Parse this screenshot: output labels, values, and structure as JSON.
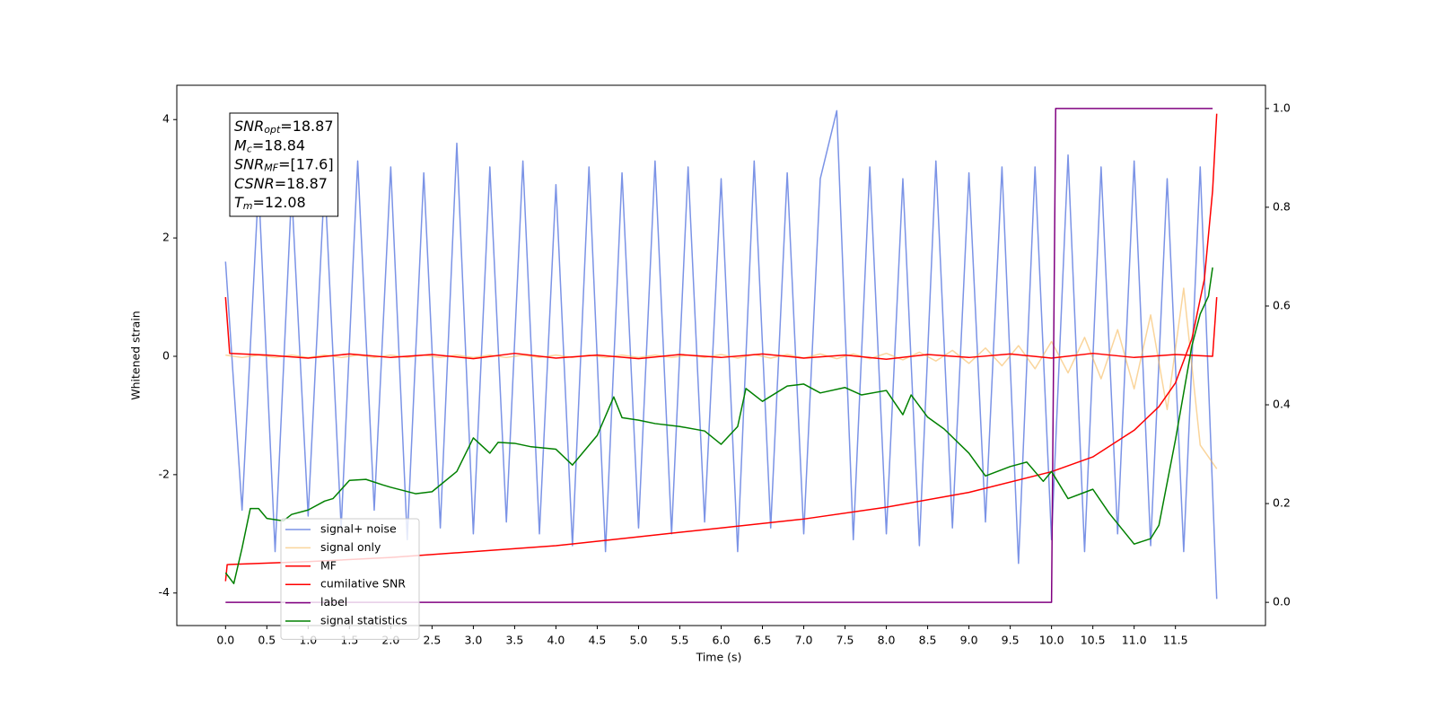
{
  "chart_data": {
    "type": "line",
    "xlabel": "Time (s)",
    "ylabel": "Whitened strain",
    "xlim": [
      -0.59,
      12.59
    ],
    "ylim": [
      -4.55,
      4.58
    ],
    "y2lim": [
      -0.047,
      1.047
    ],
    "xticks": [
      {
        "value": 0,
        "label": "0.0"
      },
      0.5,
      {
        "value": 1,
        "label": "1.0"
      },
      1.5,
      {
        "value": 2,
        "label": "2.0"
      },
      2.5,
      {
        "value": 3,
        "label": "3.0"
      },
      3.5,
      {
        "value": 4,
        "label": "4.0"
      },
      4.5,
      {
        "value": 5,
        "label": "5.0"
      },
      5.5,
      {
        "value": 6,
        "label": "6.0"
      },
      6.5,
      {
        "value": 7,
        "label": "7.0"
      },
      7.5,
      {
        "value": 8,
        "label": "8.0"
      },
      8.5,
      {
        "value": 9,
        "label": "9.0"
      },
      9.5,
      {
        "value": 10,
        "label": "10.0"
      },
      10.5,
      {
        "value": 11,
        "label": "11.0"
      },
      11.5
    ],
    "yticks": [
      -4,
      -2,
      0,
      2,
      4
    ],
    "y2ticks": [
      {
        "value": 0,
        "label": "0.0"
      },
      0.2,
      0.4,
      0.6,
      0.8,
      {
        "value": 1,
        "label": "1.0"
      }
    ],
    "legend_loc": "lower left",
    "annotation": [
      {
        "symbol": "SNR",
        "subscript": "opt",
        "text": "=18.87"
      },
      {
        "symbol": "M",
        "subscript": "c",
        "text": "=18.84"
      },
      {
        "symbol": "SNR",
        "subscript": "MF",
        "text": "=[17.6]"
      },
      {
        "symbol": "CSNR",
        "text": "=18.87"
      },
      {
        "symbol": "T",
        "subscript": "m",
        "text": "=12.08"
      }
    ],
    "series": [
      {
        "name": "signal+ noise",
        "color": "#7b93e6",
        "x": [
          0,
          0.2,
          0.4,
          0.6,
          0.8,
          1,
          1.2,
          1.4,
          1.6,
          1.8,
          2,
          2.2,
          2.4,
          2.6,
          2.8,
          3,
          3.2,
          3.4,
          3.6,
          3.8,
          4,
          4.2,
          4.4,
          4.6,
          4.8,
          5,
          5.2,
          5.4,
          5.6,
          5.8,
          6,
          6.2,
          6.4,
          6.6,
          6.8,
          7,
          7.2,
          7.4,
          7.6,
          7.8,
          8,
          8.2,
          8.4,
          8.6,
          8.8,
          9,
          9.2,
          9.4,
          9.6,
          9.8,
          10,
          10.2,
          10.4,
          10.6,
          10.8,
          11,
          11.2,
          11.4,
          11.6,
          11.8,
          12
        ],
        "values": [
          1.6,
          -2.6,
          2.9,
          -3.3,
          2.8,
          -2.7,
          3.0,
          -2.9,
          3.3,
          -2.6,
          3.2,
          -3.1,
          3.1,
          -2.9,
          3.6,
          -3.0,
          3.2,
          -2.8,
          3.3,
          -3.0,
          2.9,
          -3.2,
          3.2,
          -3.3,
          3.1,
          -2.9,
          3.3,
          -3.0,
          3.2,
          -2.8,
          3.0,
          -3.3,
          3.3,
          -2.9,
          3.1,
          -3.0,
          3.0,
          4.15,
          -3.1,
          3.2,
          -3.0,
          3.0,
          -3.2,
          3.3,
          -2.9,
          3.1,
          -2.8,
          3.2,
          -3.5,
          3.2,
          -3.1,
          3.4,
          -3.3,
          3.2,
          -3.0,
          3.3,
          -3.2,
          3.0,
          -3.3,
          3.2,
          -4.1
        ]
      },
      {
        "name": "signal only",
        "color": "#f5b24a",
        "x": [
          0,
          0.2,
          0.4,
          0.6,
          0.8,
          1,
          1.2,
          1.4,
          1.6,
          1.8,
          2,
          2.2,
          2.4,
          2.6,
          2.8,
          3,
          3.2,
          3.4,
          3.6,
          3.8,
          4,
          4.2,
          4.4,
          4.6,
          4.8,
          5,
          5.2,
          5.4,
          5.6,
          5.8,
          6,
          6.2,
          6.4,
          6.6,
          6.8,
          7,
          7.2,
          7.4,
          7.6,
          7.8,
          8,
          8.2,
          8.4,
          8.6,
          8.8,
          9,
          9.2,
          9.4,
          9.6,
          9.8,
          10,
          10.2,
          10.4,
          10.6,
          10.8,
          11,
          11.2,
          11.4,
          11.6,
          11.8,
          12
        ],
        "values": [
          0.02,
          -0.02,
          0.02,
          -0.02,
          0.02,
          -0.02,
          0.02,
          -0.02,
          0.02,
          -0.02,
          0.02,
          -0.02,
          0.02,
          -0.02,
          0.02,
          -0.02,
          0.02,
          -0.02,
          0.02,
          -0.02,
          0.02,
          -0.02,
          0.02,
          -0.02,
          0.02,
          -0.02,
          0.02,
          -0.02,
          0.02,
          -0.02,
          0.03,
          -0.03,
          0.03,
          -0.03,
          0.03,
          -0.03,
          0.04,
          -0.04,
          0.04,
          -0.04,
          0.05,
          -0.06,
          0.07,
          -0.08,
          0.1,
          -0.12,
          0.14,
          -0.16,
          0.18,
          -0.21,
          0.25,
          -0.28,
          0.32,
          -0.38,
          0.45,
          -0.55,
          0.7,
          -0.9,
          1.15,
          -1.5,
          -1.9
        ]
      },
      {
        "name": "MF",
        "color": "#ff0000",
        "x": [
          0,
          0.05,
          0.5,
          1,
          1.5,
          2,
          2.5,
          3,
          3.5,
          4,
          4.5,
          5,
          5.5,
          6,
          6.5,
          7,
          7.5,
          8,
          8.5,
          9,
          9.5,
          10,
          10.5,
          11,
          11.5,
          11.95,
          12
        ],
        "values": [
          1.0,
          0.05,
          0.02,
          -0.03,
          0.04,
          -0.02,
          0.03,
          -0.04,
          0.05,
          -0.03,
          0.02,
          -0.04,
          0.03,
          -0.02,
          0.04,
          -0.03,
          0.02,
          -0.05,
          0.03,
          -0.02,
          0.04,
          -0.03,
          0.05,
          -0.02,
          0.03,
          0.0,
          1.0
        ]
      },
      {
        "name": "cumilative SNR",
        "color": "#ff0000",
        "x": [
          0,
          0.02,
          1,
          2,
          3,
          4,
          5,
          6,
          7,
          8,
          9,
          10,
          10.5,
          11,
          11.3,
          11.5,
          11.7,
          11.85,
          11.95,
          12
        ],
        "values": [
          -3.8,
          -3.52,
          -3.47,
          -3.4,
          -3.3,
          -3.2,
          -3.05,
          -2.9,
          -2.75,
          -2.55,
          -2.3,
          -1.95,
          -1.7,
          -1.25,
          -0.85,
          -0.45,
          0.3,
          1.3,
          2.8,
          4.1
        ]
      },
      {
        "name": "label",
        "color": "#800080",
        "axis": "y2",
        "x": [
          0,
          10,
          10.05,
          11.95
        ],
        "values": [
          0,
          0,
          1,
          1
        ]
      },
      {
        "name": "signal statistics",
        "color": "#008000",
        "axis": "y2",
        "x": [
          0,
          0.1,
          0.2,
          0.3,
          0.4,
          0.5,
          0.7,
          0.8,
          1,
          1.2,
          1.3,
          1.5,
          1.7,
          1.9,
          2,
          2.3,
          2.5,
          2.8,
          3,
          3.2,
          3.3,
          3.5,
          3.7,
          4,
          4.2,
          4.5,
          4.7,
          4.8,
          5,
          5.2,
          5.5,
          5.8,
          6,
          6.2,
          6.3,
          6.5,
          6.8,
          7,
          7.2,
          7.5,
          7.7,
          8,
          8.2,
          8.3,
          8.5,
          8.7,
          9,
          9.2,
          9.5,
          9.7,
          9.9,
          10,
          10.2,
          10.5,
          10.7,
          11,
          11.2,
          11.3,
          11.5,
          11.7,
          11.8,
          11.9,
          11.95
        ],
        "values": [
          0.06,
          0.038,
          0.11,
          0.19,
          0.19,
          0.17,
          0.165,
          0.178,
          0.187,
          0.205,
          0.21,
          0.247,
          0.249,
          0.238,
          0.233,
          0.22,
          0.224,
          0.265,
          0.333,
          0.302,
          0.324,
          0.322,
          0.315,
          0.31,
          0.278,
          0.338,
          0.416,
          0.374,
          0.369,
          0.362,
          0.356,
          0.347,
          0.32,
          0.356,
          0.433,
          0.407,
          0.438,
          0.442,
          0.424,
          0.435,
          0.42,
          0.429,
          0.38,
          0.42,
          0.375,
          0.351,
          0.302,
          0.256,
          0.275,
          0.284,
          0.245,
          0.265,
          0.21,
          0.229,
          0.18,
          0.118,
          0.129,
          0.156,
          0.329,
          0.52,
          0.584,
          0.62,
          0.678
        ]
      }
    ]
  }
}
